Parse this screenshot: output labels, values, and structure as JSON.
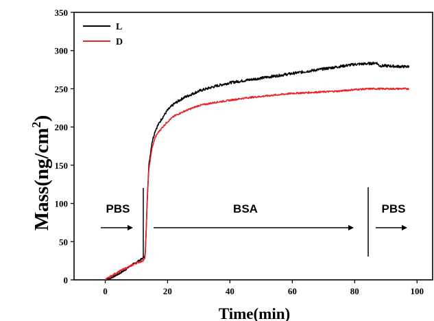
{
  "chart_data": {
    "type": "line",
    "xlabel": "Time(min)",
    "ylabel_main": "Mass(ng/cm",
    "ylabel_sup": "2",
    "ylabel_close": ")",
    "xlim": [
      -10,
      105
    ],
    "ylim": [
      0,
      350
    ],
    "xticks": [
      0,
      20,
      40,
      60,
      80,
      100
    ],
    "yticks": [
      0,
      50,
      100,
      150,
      200,
      250,
      300,
      350
    ],
    "grid": false,
    "legend_position": "top-left",
    "series": [
      {
        "name": "L",
        "color": "#000000",
        "x": [
          0,
          2,
          4,
          6,
          8,
          10,
          12,
          12.8,
          13.1,
          13.5,
          14,
          15,
          16,
          17,
          18,
          20,
          22,
          25,
          30,
          35,
          40,
          45,
          50,
          55,
          60,
          65,
          70,
          75,
          80,
          85,
          87,
          88,
          90,
          95,
          97.5
        ],
        "values": [
          0,
          3,
          7,
          12,
          18,
          23,
          28,
          32,
          60,
          110,
          150,
          180,
          195,
          203,
          210,
          222,
          230,
          238,
          247,
          253,
          258,
          261,
          264,
          267,
          270,
          273,
          276,
          279,
          282,
          283,
          284,
          280,
          280,
          279,
          279
        ]
      },
      {
        "name": "D",
        "color": "#e8262a",
        "x": [
          0,
          2,
          4,
          6,
          8,
          10,
          12,
          12.8,
          13.1,
          13.5,
          14,
          15,
          16,
          17,
          18,
          20,
          22,
          25,
          30,
          35,
          40,
          45,
          50,
          55,
          60,
          65,
          70,
          75,
          80,
          85,
          90,
          95,
          97.5
        ],
        "values": [
          0,
          5,
          10,
          14,
          18,
          22,
          25,
          28,
          60,
          105,
          145,
          172,
          186,
          193,
          198,
          207,
          214,
          220,
          228,
          232,
          235,
          238,
          240,
          242,
          244,
          245,
          246,
          247,
          249,
          250,
          250,
          250,
          250
        ]
      }
    ],
    "annotations": [
      {
        "text": "PBS",
        "x": 5
      },
      {
        "text": "BSA",
        "x": 46
      },
      {
        "text": "PBS",
        "x": 96.5
      }
    ]
  },
  "colors": {
    "axis": "#000000",
    "line_L": "#000000",
    "line_D": "#e8262a"
  }
}
